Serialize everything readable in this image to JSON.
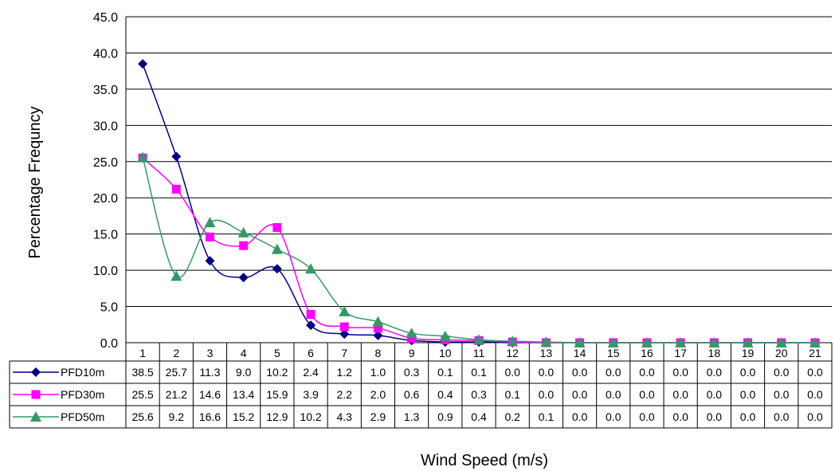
{
  "chart_data": {
    "type": "line",
    "title": "",
    "xlabel": "Wind Speed (m/s)",
    "ylabel": "Percentage Frequncy",
    "ylim": [
      0,
      45
    ],
    "yticks": [
      "0.0",
      "5.0",
      "10.0",
      "15.0",
      "20.0",
      "25.0",
      "30.0",
      "35.0",
      "40.0",
      "45.0"
    ],
    "grid": "horizontal",
    "legend": "data-table",
    "categories": [
      "1",
      "2",
      "3",
      "4",
      "5",
      "6",
      "7",
      "8",
      "9",
      "10",
      "11",
      "12",
      "13",
      "14",
      "15",
      "16",
      "17",
      "18",
      "19",
      "20",
      "21"
    ],
    "series": [
      {
        "name": "PFD10m",
        "color": "#000080",
        "marker": "diamond",
        "values": [
          38.5,
          25.7,
          11.3,
          9.0,
          10.2,
          2.4,
          1.2,
          1.0,
          0.3,
          0.1,
          0.1,
          0.0,
          0.0,
          0.0,
          0.0,
          0.0,
          0.0,
          0.0,
          0.0,
          0.0,
          0.0
        ],
        "labels": [
          "38.5",
          "25.7",
          "11.3",
          "9.0",
          "10.2",
          "2.4",
          "1.2",
          "1.0",
          "0.3",
          "0.1",
          "0.1",
          "0.0",
          "0.0",
          "0.0",
          "0.0",
          "0.0",
          "0.0",
          "0.0",
          "0.0",
          "0.0",
          "0.0"
        ]
      },
      {
        "name": "PFD30m",
        "color": "#FF00FF",
        "marker": "square",
        "values": [
          25.5,
          21.2,
          14.6,
          13.4,
          15.9,
          3.9,
          2.2,
          2.0,
          0.6,
          0.4,
          0.3,
          0.1,
          0.0,
          0.0,
          0.0,
          0.0,
          0.0,
          0.0,
          0.0,
          0.0,
          0.0
        ],
        "labels": [
          "25.5",
          "21.2",
          "14.6",
          "13.4",
          "15.9",
          "3.9",
          "2.2",
          "2.0",
          "0.6",
          "0.4",
          "0.3",
          "0.1",
          "0.0",
          "0.0",
          "0.0",
          "0.0",
          "0.0",
          "0.0",
          "0.0",
          "0.0",
          "0.0"
        ]
      },
      {
        "name": "PFD50m",
        "color": "#339966",
        "marker": "triangle",
        "values": [
          25.6,
          9.2,
          16.6,
          15.2,
          12.9,
          10.2,
          4.3,
          2.9,
          1.3,
          0.9,
          0.4,
          0.2,
          0.1,
          0.0,
          0.0,
          0.0,
          0.0,
          0.0,
          0.0,
          0.0,
          0.0
        ],
        "labels": [
          "25.6",
          "9.2",
          "16.6",
          "15.2",
          "12.9",
          "10.2",
          "4.3",
          "2.9",
          "1.3",
          "0.9",
          "0.4",
          "0.2",
          "0.1",
          "0.0",
          "0.0",
          "0.0",
          "0.0",
          "0.0",
          "0.0",
          "0.0",
          "0.0"
        ]
      }
    ]
  }
}
